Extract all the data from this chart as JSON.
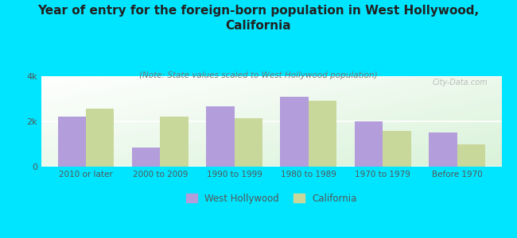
{
  "title": "Year of entry for the foreign-born population in West Hollywood,\nCalifornia",
  "subtitle": "(Note: State values scaled to West Hollywood population)",
  "categories": [
    "2010 or later",
    "2000 to 2009",
    "1990 to 1999",
    "1980 to 1989",
    "1970 to 1979",
    "Before 1970"
  ],
  "west_hollywood": [
    2200,
    850,
    2650,
    3100,
    2000,
    1500
  ],
  "california": [
    2550,
    2200,
    2150,
    2900,
    1580,
    1000
  ],
  "wh_color": "#b39ddb",
  "ca_color": "#c8d89a",
  "background_color": "#00e5ff",
  "ylim": [
    0,
    4000
  ],
  "yticks": [
    0,
    2000,
    4000
  ],
  "ytick_labels": [
    "0",
    "2k",
    "4k"
  ],
  "bar_width": 0.38,
  "legend_labels": [
    "West Hollywood",
    "California"
  ],
  "watermark": "City-Data.com"
}
